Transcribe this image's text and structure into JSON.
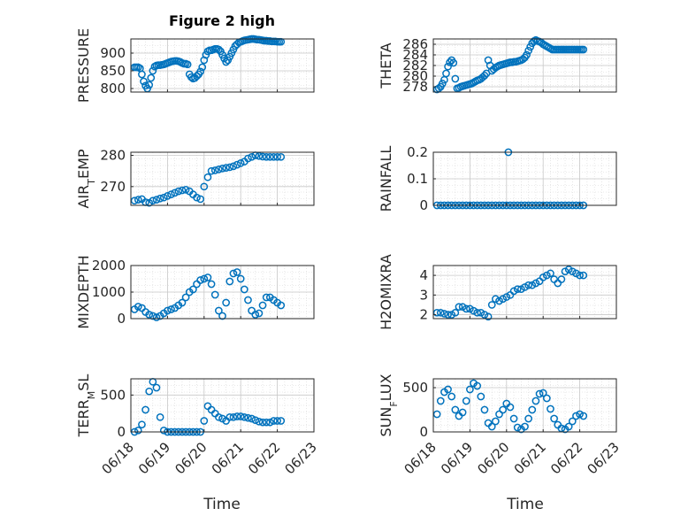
{
  "figure": {
    "title": "Figure 2 high",
    "xlabel_left": "Time",
    "xlabel_right": "Time",
    "marker_color": "#0072BD",
    "x_ticks": [
      "06/18",
      "06/19",
      "06/20",
      "06/21",
      "06/22",
      "06/23"
    ]
  },
  "chart_data": [
    {
      "type": "scatter",
      "ylabel": "PRESSURE",
      "xlim": [
        0,
        5
      ],
      "ylim": [
        790,
        940
      ],
      "yticks": [
        800,
        850,
        900
      ],
      "yticklabels": [
        "800",
        "850",
        "900"
      ],
      "x": [
        0.1,
        0.15,
        0.2,
        0.25,
        0.3,
        0.35,
        0.4,
        0.45,
        0.5,
        0.55,
        0.6,
        0.65,
        0.7,
        0.75,
        0.8,
        0.85,
        0.9,
        0.95,
        1.0,
        1.05,
        1.1,
        1.15,
        1.2,
        1.25,
        1.3,
        1.35,
        1.4,
        1.45,
        1.5,
        1.55,
        1.6,
        1.65,
        1.7,
        1.75,
        1.8,
        1.85,
        1.9,
        1.95,
        2.0,
        2.05,
        2.1,
        2.15,
        2.2,
        2.25,
        2.3,
        2.35,
        2.4,
        2.45,
        2.5,
        2.55,
        2.6,
        2.65,
        2.7,
        2.75,
        2.8,
        2.85,
        2.9,
        2.95,
        3.0,
        3.05,
        3.1,
        3.15,
        3.2,
        3.25,
        3.3,
        3.35,
        3.4,
        3.45,
        3.5,
        3.55,
        3.6,
        3.65,
        3.7,
        3.75,
        3.8,
        3.85,
        3.9,
        3.95,
        4.0,
        4.05,
        4.1
      ],
      "y": [
        860,
        860,
        860,
        857,
        840,
        820,
        808,
        800,
        810,
        830,
        850,
        862,
        865,
        866,
        866,
        867,
        868,
        870,
        872,
        874,
        876,
        877,
        878,
        878,
        877,
        875,
        872,
        870,
        870,
        868,
        840,
        832,
        828,
        830,
        835,
        840,
        848,
        860,
        880,
        895,
        905,
        908,
        908,
        910,
        912,
        912,
        910,
        905,
        895,
        885,
        875,
        880,
        890,
        900,
        910,
        920,
        925,
        930,
        932,
        934,
        936,
        937,
        938,
        939,
        940,
        940,
        939,
        938,
        938,
        937,
        936,
        935,
        935,
        934,
        934,
        933,
        933,
        933,
        932,
        932,
        932
      ],
      "title": ""
    },
    {
      "type": "scatter",
      "ylabel": "THETA",
      "xlim": [
        0,
        5
      ],
      "ylim": [
        277,
        287
      ],
      "yticks": [
        278,
        280,
        282,
        284,
        286
      ],
      "yticklabels": [
        "278",
        "280",
        "282",
        "284",
        "286"
      ],
      "x": [
        0.1,
        0.15,
        0.2,
        0.25,
        0.3,
        0.35,
        0.4,
        0.45,
        0.5,
        0.55,
        0.6,
        0.65,
        0.7,
        0.75,
        0.8,
        0.85,
        0.9,
        0.95,
        1.0,
        1.05,
        1.1,
        1.15,
        1.2,
        1.25,
        1.3,
        1.35,
        1.4,
        1.45,
        1.5,
        1.55,
        1.6,
        1.65,
        1.7,
        1.75,
        1.8,
        1.85,
        1.9,
        1.95,
        2.0,
        2.05,
        2.1,
        2.15,
        2.2,
        2.25,
        2.3,
        2.35,
        2.4,
        2.45,
        2.5,
        2.55,
        2.6,
        2.65,
        2.7,
        2.75,
        2.8,
        2.85,
        2.9,
        2.95,
        3.0,
        3.05,
        3.1,
        3.15,
        3.2,
        3.25,
        3.3,
        3.35,
        3.4,
        3.45,
        3.5,
        3.55,
        3.6,
        3.65,
        3.7,
        3.75,
        3.8,
        3.85,
        3.9,
        3.95,
        4.0,
        4.05,
        4.1
      ],
      "y": [
        277.5,
        277.7,
        278.0,
        278.6,
        279.3,
        280.5,
        281.8,
        282.6,
        283.0,
        282.5,
        279.5,
        277.7,
        277.8,
        278.0,
        278.1,
        278.2,
        278.3,
        278.4,
        278.5,
        278.6,
        278.8,
        279.0,
        279.2,
        279.3,
        279.5,
        279.8,
        280.1,
        280.5,
        283.0,
        282.0,
        281.0,
        281.3,
        281.6,
        281.8,
        282.0,
        282.1,
        282.2,
        282.3,
        282.4,
        282.5,
        282.6,
        282.6,
        282.7,
        282.7,
        282.8,
        282.9,
        283.0,
        283.2,
        283.5,
        284.0,
        284.8,
        285.5,
        286.2,
        286.6,
        286.8,
        286.6,
        286.5,
        286.3,
        286.0,
        285.8,
        285.6,
        285.4,
        285.2,
        285.0,
        285.0,
        285.0,
        285.0,
        285.0,
        285.0,
        285.0,
        285.0,
        285.0,
        285.0,
        285.0,
        285.0,
        285.0,
        285.0,
        285.0,
        285.0,
        285.0,
        285.0
      ],
      "title": ""
    },
    {
      "type": "scatter",
      "ylabel": "AIR_TEMP",
      "xlim": [
        0,
        5
      ],
      "ylim": [
        264,
        281
      ],
      "yticks": [
        270,
        280
      ],
      "yticklabels": [
        "270",
        "280"
      ],
      "x": [
        0.1,
        0.2,
        0.3,
        0.4,
        0.5,
        0.6,
        0.7,
        0.8,
        0.9,
        1.0,
        1.1,
        1.2,
        1.3,
        1.4,
        1.5,
        1.6,
        1.7,
        1.8,
        1.9,
        2.0,
        2.1,
        2.2,
        2.3,
        2.4,
        2.5,
        2.6,
        2.7,
        2.8,
        2.9,
        3.0,
        3.1,
        3.2,
        3.3,
        3.4,
        3.5,
        3.6,
        3.7,
        3.8,
        3.9,
        4.0,
        4.1
      ],
      "y": [
        265.5,
        265.8,
        266.0,
        265.0,
        264.8,
        265.5,
        265.8,
        266.2,
        266.5,
        267.0,
        267.5,
        268.0,
        268.5,
        268.8,
        269.0,
        268.5,
        267.5,
        266.5,
        266.0,
        270.0,
        273.0,
        275.0,
        275.2,
        275.5,
        275.8,
        276.0,
        276.2,
        276.5,
        277.0,
        277.5,
        278.0,
        279.0,
        279.5,
        280.0,
        279.8,
        279.6,
        279.5,
        279.5,
        279.5,
        279.5,
        279.5
      ],
      "title": ""
    },
    {
      "type": "scatter",
      "ylabel": "RAINFALL",
      "xlim": [
        0,
        5
      ],
      "ylim": [
        0,
        0.2
      ],
      "yticks": [
        0,
        0.1,
        0.2
      ],
      "yticklabels": [
        "0",
        "0.1",
        "0.2"
      ],
      "x": [
        0.1,
        0.2,
        0.3,
        0.4,
        0.5,
        0.6,
        0.7,
        0.8,
        0.9,
        1.0,
        1.1,
        1.2,
        1.3,
        1.4,
        1.5,
        1.6,
        1.7,
        1.8,
        1.9,
        2.0,
        2.05,
        2.1,
        2.2,
        2.3,
        2.4,
        2.5,
        2.6,
        2.7,
        2.8,
        2.9,
        3.0,
        3.1,
        3.2,
        3.3,
        3.4,
        3.5,
        3.6,
        3.7,
        3.8,
        3.9,
        4.0,
        4.1
      ],
      "y": [
        0,
        0,
        0,
        0,
        0,
        0,
        0,
        0,
        0,
        0,
        0,
        0,
        0,
        0,
        0,
        0,
        0,
        0,
        0,
        0,
        0.2,
        0,
        0,
        0,
        0,
        0,
        0,
        0,
        0,
        0,
        0,
        0,
        0,
        0,
        0,
        0,
        0,
        0,
        0,
        0,
        0,
        0
      ],
      "title": ""
    },
    {
      "type": "scatter",
      "ylabel": "MIXDEPTH",
      "xlim": [
        0,
        5
      ],
      "ylim": [
        0,
        2000
      ],
      "yticks": [
        0,
        1000,
        2000
      ],
      "yticklabels": [
        "0",
        "1000",
        "2000"
      ],
      "x": [
        0.1,
        0.2,
        0.3,
        0.4,
        0.5,
        0.6,
        0.7,
        0.8,
        0.9,
        1.0,
        1.1,
        1.2,
        1.3,
        1.4,
        1.5,
        1.6,
        1.7,
        1.8,
        1.9,
        2.0,
        2.1,
        2.2,
        2.3,
        2.4,
        2.5,
        2.6,
        2.7,
        2.8,
        2.9,
        3.0,
        3.1,
        3.2,
        3.3,
        3.4,
        3.5,
        3.6,
        3.7,
        3.8,
        3.9,
        4.0,
        4.1
      ],
      "y": [
        350,
        450,
        400,
        250,
        150,
        100,
        50,
        100,
        200,
        300,
        350,
        400,
        500,
        600,
        800,
        1000,
        1100,
        1300,
        1450,
        1500,
        1550,
        1300,
        900,
        300,
        100,
        600,
        1400,
        1700,
        1750,
        1500,
        1100,
        700,
        300,
        150,
        200,
        500,
        800,
        800,
        700,
        600,
        500
      ],
      "title": ""
    },
    {
      "type": "scatter",
      "ylabel": "H2OMIXRA",
      "xlim": [
        0,
        5
      ],
      "ylim": [
        1.8,
        4.5
      ],
      "yticks": [
        2,
        3,
        4
      ],
      "yticklabels": [
        "2",
        "3",
        "4"
      ],
      "x": [
        0.1,
        0.2,
        0.3,
        0.4,
        0.5,
        0.6,
        0.7,
        0.8,
        0.9,
        1.0,
        1.1,
        1.2,
        1.3,
        1.4,
        1.5,
        1.6,
        1.7,
        1.8,
        1.9,
        2.0,
        2.1,
        2.2,
        2.3,
        2.4,
        2.5,
        2.6,
        2.7,
        2.8,
        2.9,
        3.0,
        3.1,
        3.2,
        3.3,
        3.4,
        3.5,
        3.6,
        3.7,
        3.8,
        3.9,
        4.0,
        4.1
      ],
      "y": [
        2.1,
        2.1,
        2.05,
        2.0,
        2.0,
        2.1,
        2.4,
        2.4,
        2.3,
        2.3,
        2.2,
        2.1,
        2.1,
        2.0,
        1.9,
        2.5,
        2.8,
        2.7,
        2.8,
        2.9,
        3.0,
        3.2,
        3.3,
        3.3,
        3.4,
        3.5,
        3.5,
        3.6,
        3.7,
        3.9,
        4.0,
        4.1,
        3.8,
        3.6,
        3.8,
        4.2,
        4.3,
        4.2,
        4.1,
        4.0,
        4.0
      ],
      "title": ""
    },
    {
      "type": "scatter",
      "ylabel": "TERR_MSL",
      "xlim": [
        0,
        5
      ],
      "ylim": [
        0,
        720
      ],
      "yticks": [
        0,
        500
      ],
      "yticklabels": [
        "0",
        "500"
      ],
      "x": [
        0.1,
        0.2,
        0.3,
        0.4,
        0.5,
        0.6,
        0.7,
        0.8,
        0.9,
        1.0,
        1.1,
        1.2,
        1.3,
        1.4,
        1.5,
        1.6,
        1.7,
        1.8,
        1.9,
        2.0,
        2.1,
        2.2,
        2.3,
        2.4,
        2.5,
        2.6,
        2.7,
        2.8,
        2.9,
        3.0,
        3.1,
        3.2,
        3.3,
        3.4,
        3.5,
        3.6,
        3.7,
        3.8,
        3.9,
        4.0,
        4.1
      ],
      "y": [
        0,
        20,
        100,
        300,
        550,
        680,
        600,
        200,
        20,
        0,
        0,
        0,
        0,
        0,
        0,
        0,
        0,
        0,
        0,
        150,
        350,
        300,
        250,
        200,
        180,
        150,
        200,
        200,
        210,
        210,
        200,
        190,
        180,
        160,
        140,
        130,
        130,
        130,
        150,
        150,
        150
      ],
      "title": ""
    },
    {
      "type": "scatter",
      "ylabel": "SUN_FLUX",
      "xlim": [
        0,
        5
      ],
      "ylim": [
        0,
        600
      ],
      "yticks": [
        0,
        500
      ],
      "yticklabels": [
        "0",
        "500"
      ],
      "x": [
        0.1,
        0.2,
        0.3,
        0.4,
        0.5,
        0.6,
        0.7,
        0.8,
        0.9,
        1.0,
        1.1,
        1.2,
        1.3,
        1.4,
        1.5,
        1.6,
        1.7,
        1.8,
        1.9,
        2.0,
        2.1,
        2.2,
        2.3,
        2.4,
        2.5,
        2.6,
        2.7,
        2.8,
        2.9,
        3.0,
        3.1,
        3.2,
        3.3,
        3.4,
        3.5,
        3.6,
        3.7,
        3.8,
        3.9,
        4.0,
        4.1
      ],
      "y": [
        200,
        350,
        450,
        480,
        400,
        250,
        180,
        220,
        350,
        480,
        550,
        520,
        400,
        250,
        100,
        60,
        120,
        200,
        250,
        320,
        280,
        150,
        50,
        30,
        60,
        150,
        250,
        350,
        430,
        440,
        380,
        260,
        150,
        80,
        40,
        30,
        60,
        120,
        180,
        200,
        180
      ],
      "title": ""
    }
  ]
}
